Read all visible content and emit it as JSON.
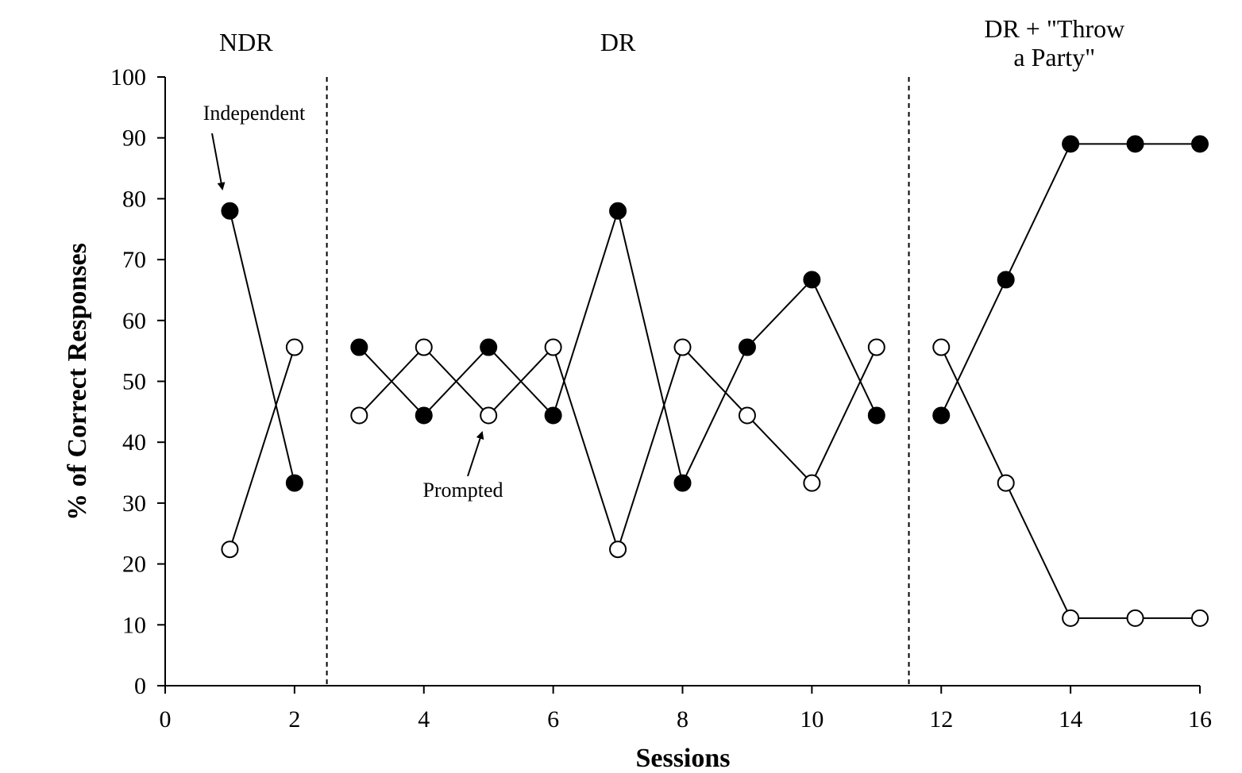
{
  "chart_data": {
    "type": "line",
    "title": "",
    "xlabel": "Sessions",
    "ylabel": "% of Correct Responses",
    "xlim": [
      0,
      16
    ],
    "ylim": [
      0,
      100
    ],
    "xticks": [
      0,
      2,
      4,
      6,
      8,
      10,
      12,
      14,
      16
    ],
    "yticks": [
      0,
      10,
      20,
      30,
      40,
      50,
      60,
      70,
      80,
      90,
      100
    ],
    "grid": false,
    "legend": "none",
    "phase_lines": [
      2.5,
      11.5
    ],
    "phases": [
      {
        "lines": [
          "NDR"
        ],
        "start": 0,
        "end": 2.5
      },
      {
        "lines": [
          "DR"
        ],
        "start": 2.5,
        "end": 11.5
      },
      {
        "lines": [
          "DR + \"Throw",
          "a Party\""
        ],
        "start": 11.5,
        "end": 16
      }
    ],
    "series": [
      {
        "marker": "filled-circle",
        "segments": [
          [
            [
              1,
              78
            ],
            [
              2,
              33.3
            ]
          ],
          [
            [
              3,
              55.6
            ],
            [
              4,
              44.4
            ],
            [
              5,
              55.6
            ],
            [
              6,
              44.4
            ],
            [
              7,
              78
            ],
            [
              8,
              33.3
            ],
            [
              9,
              55.6
            ],
            [
              10,
              66.7
            ],
            [
              11,
              44.4
            ]
          ],
          [
            [
              12,
              44.4
            ],
            [
              13,
              66.7
            ],
            [
              14,
              89
            ],
            [
              15,
              89
            ],
            [
              16,
              89
            ]
          ]
        ]
      },
      {
        "marker": "open-circle",
        "segments": [
          [
            [
              1,
              22.4
            ],
            [
              2,
              55.6
            ]
          ],
          [
            [
              3,
              44.4
            ],
            [
              4,
              55.6
            ],
            [
              5,
              44.4
            ],
            [
              6,
              55.6
            ],
            [
              7,
              22.4
            ],
            [
              8,
              55.6
            ],
            [
              9,
              44.4
            ],
            [
              10,
              33.3
            ],
            [
              11,
              55.6
            ]
          ],
          [
            [
              12,
              55.6
            ],
            [
              13,
              33.3
            ],
            [
              14,
              11.1
            ],
            [
              15,
              11.1
            ],
            [
              16,
              11.1
            ]
          ]
        ]
      }
    ],
    "annotations": [
      {
        "text": "Independent",
        "points_to": [
          1,
          78
        ]
      },
      {
        "text": "Prompted",
        "points_to": [
          5,
          44.4
        ]
      }
    ]
  }
}
